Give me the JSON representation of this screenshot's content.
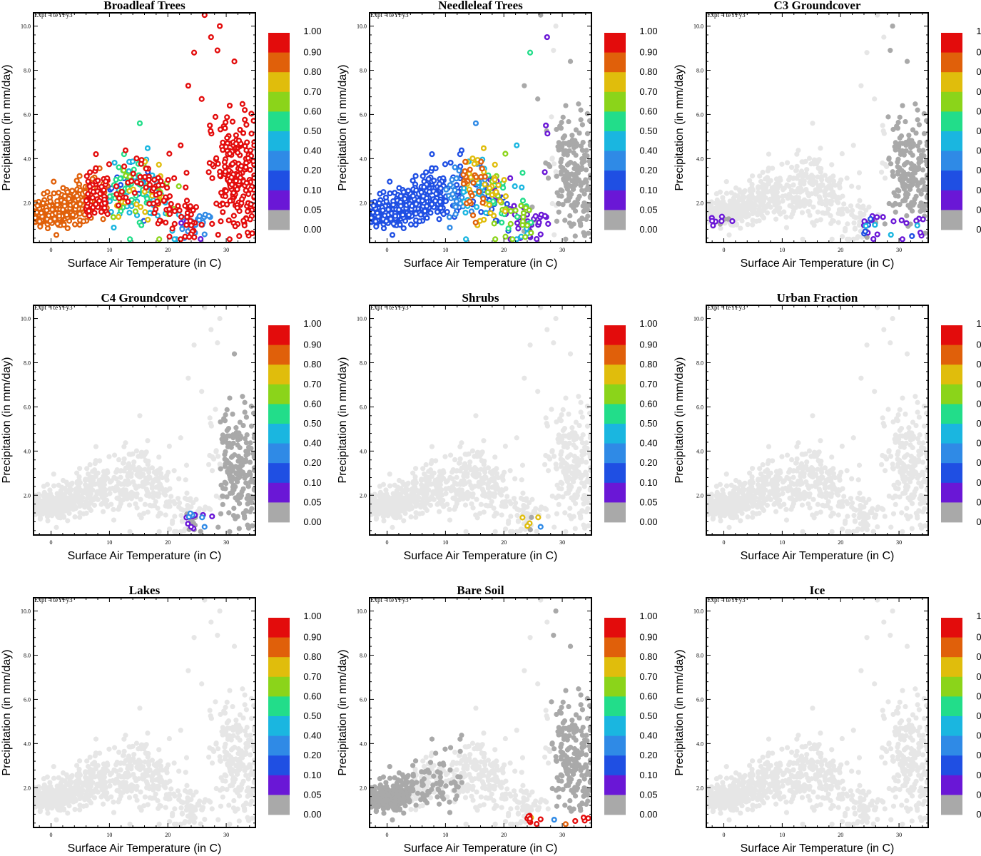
{
  "figure": {
    "experiment_label": "Expt = teYFy3"
  },
  "colors": {
    "background_cloud": "#e6e6e6",
    "zero_fraction": "#a9a9a9",
    "bins": [
      "#a9a9a9",
      "#6a17d6",
      "#1f4fe3",
      "#2f8ae6",
      "#1ab6e0",
      "#22dd8a",
      "#8bd41a",
      "#e0bd0c",
      "#e0600a",
      "#e30c0c"
    ]
  },
  "colorbar": {
    "labels": [
      "1.00",
      "0.90",
      "0.80",
      "0.70",
      "0.60",
      "0.50",
      "0.40",
      "0.20",
      "0.10",
      "0.05",
      "0.00"
    ]
  },
  "chart_data": [
    {
      "type": "scatter",
      "title": "Broadleaf Trees",
      "variable": "broadleaf",
      "xlabel": "Surface Air Temperature (in C)",
      "ylabel": "Precipitation (in mm/day)",
      "xlim": [
        -3,
        35
      ],
      "ylim": [
        0.2,
        10.6
      ],
      "xticks": [
        "0",
        "10",
        "20",
        "30"
      ],
      "yticks": [
        "2.0",
        "4.0",
        "6.0",
        "8.0",
        "10.0"
      ]
    },
    {
      "type": "scatter",
      "title": "Needleleaf Trees",
      "variable": "needleleaf",
      "xlabel": "Surface Air Temperature (in C)",
      "ylabel": "Precipitation (in mm/day)",
      "xlim": [
        -3,
        35
      ],
      "ylim": [
        0.2,
        10.6
      ],
      "xticks": [
        "0",
        "10",
        "20",
        "30"
      ],
      "yticks": [
        "2.0",
        "4.0",
        "6.0",
        "8.0",
        "10.0"
      ]
    },
    {
      "type": "scatter",
      "title": "C3 Groundcover",
      "variable": "c3",
      "xlabel": "Surface Air Temperature (in C)",
      "ylabel": "Precipitation (in mm/day)",
      "xlim": [
        -3,
        35
      ],
      "ylim": [
        0.2,
        10.6
      ],
      "xticks": [
        "0",
        "10",
        "20",
        "30"
      ],
      "yticks": [
        "2.0",
        "4.0",
        "6.0",
        "8.0",
        "10.0"
      ]
    },
    {
      "type": "scatter",
      "title": "C4 Groundcover",
      "variable": "c4",
      "xlabel": "Surface Air Temperature (in C)",
      "ylabel": "Precipitation (in mm/day)",
      "xlim": [
        -3,
        35
      ],
      "ylim": [
        0.2,
        10.6
      ],
      "xticks": [
        "0",
        "10",
        "20",
        "30"
      ],
      "yticks": [
        "2.0",
        "4.0",
        "6.0",
        "8.0",
        "10.0"
      ]
    },
    {
      "type": "scatter",
      "title": "Shrubs",
      "variable": "shrubs",
      "xlabel": "Surface Air Temperature (in C)",
      "ylabel": "Precipitation (in mm/day)",
      "xlim": [
        -3,
        35
      ],
      "ylim": [
        0.2,
        10.6
      ],
      "xticks": [
        "0",
        "10",
        "20",
        "30"
      ],
      "yticks": [
        "2.0",
        "4.0",
        "6.0",
        "8.0",
        "10.0"
      ]
    },
    {
      "type": "scatter",
      "title": "Urban Fraction",
      "variable": "urban",
      "xlabel": "Surface Air Temperature (in C)",
      "ylabel": "Precipitation (in mm/day)",
      "xlim": [
        -3,
        35
      ],
      "ylim": [
        0.2,
        10.6
      ],
      "xticks": [
        "0",
        "10",
        "20",
        "30"
      ],
      "yticks": [
        "2.0",
        "4.0",
        "6.0",
        "8.0",
        "10.0"
      ]
    },
    {
      "type": "scatter",
      "title": "Lakes",
      "variable": "lakes",
      "xlabel": "Surface Air Temperature (in C)",
      "ylabel": "Precipitation (in mm/day)",
      "xlim": [
        -3,
        35
      ],
      "ylim": [
        0.2,
        10.6
      ],
      "xticks": [
        "0",
        "10",
        "20",
        "30"
      ],
      "yticks": [
        "2.0",
        "4.0",
        "6.0",
        "8.0",
        "10.0"
      ]
    },
    {
      "type": "scatter",
      "title": "Bare Soil",
      "variable": "baresoil",
      "xlabel": "Surface Air Temperature (in C)",
      "ylabel": "Precipitation (in mm/day)",
      "xlim": [
        -3,
        35
      ],
      "ylim": [
        0.2,
        10.6
      ],
      "xticks": [
        "0",
        "10",
        "20",
        "30"
      ],
      "yticks": [
        "2.0",
        "4.0",
        "6.0",
        "8.0",
        "10.0"
      ]
    },
    {
      "type": "scatter",
      "title": "Ice",
      "variable": "ice",
      "xlabel": "Surface Air Temperature (in C)",
      "ylabel": "Precipitation (in mm/day)",
      "xlim": [
        -3,
        35
      ],
      "ylim": [
        0.2,
        10.6
      ],
      "xticks": [
        "0",
        "10",
        "20",
        "30"
      ],
      "yticks": [
        "2.0",
        "4.0",
        "6.0",
        "8.0",
        "10.0"
      ]
    }
  ]
}
